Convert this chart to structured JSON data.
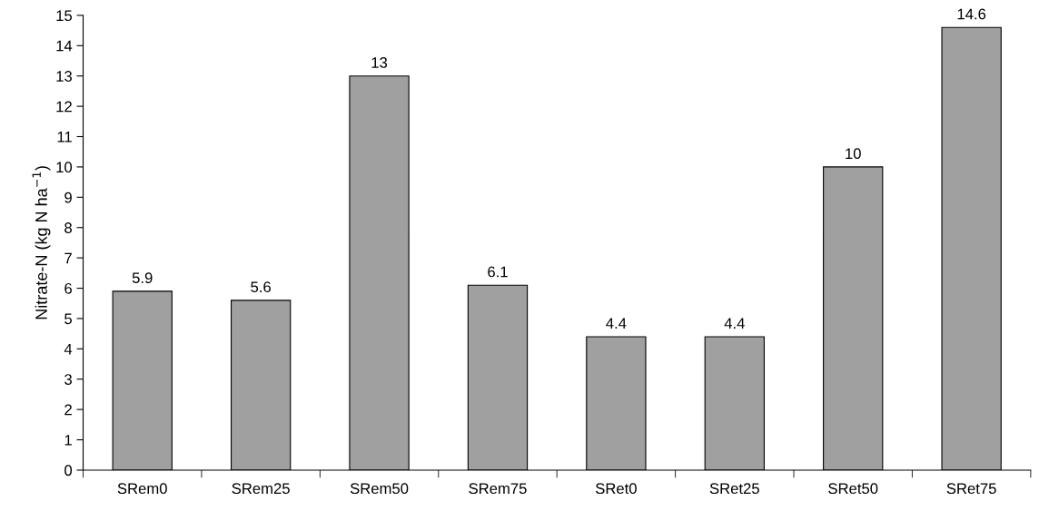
{
  "chart_data": {
    "type": "bar",
    "ylabel": "Nitrate-N (kg N ha$^{−1}$)",
    "categories": [
      "SRem0",
      "SRem25",
      "SRem50",
      "SRem75",
      "SRet0",
      "SRet25",
      "SRet50",
      "SRet75"
    ],
    "values": [
      5.9,
      5.6,
      13,
      6.1,
      4.4,
      4.4,
      10,
      14.6
    ],
    "color": "#a0a0a0",
    "ylim": [
      0,
      15
    ],
    "yticks": [
      0,
      1,
      2,
      3,
      4,
      5,
      6,
      7,
      8,
      9,
      10,
      11,
      12,
      13,
      14,
      15
    ],
    "data_labels": true,
    "grid": false
  }
}
